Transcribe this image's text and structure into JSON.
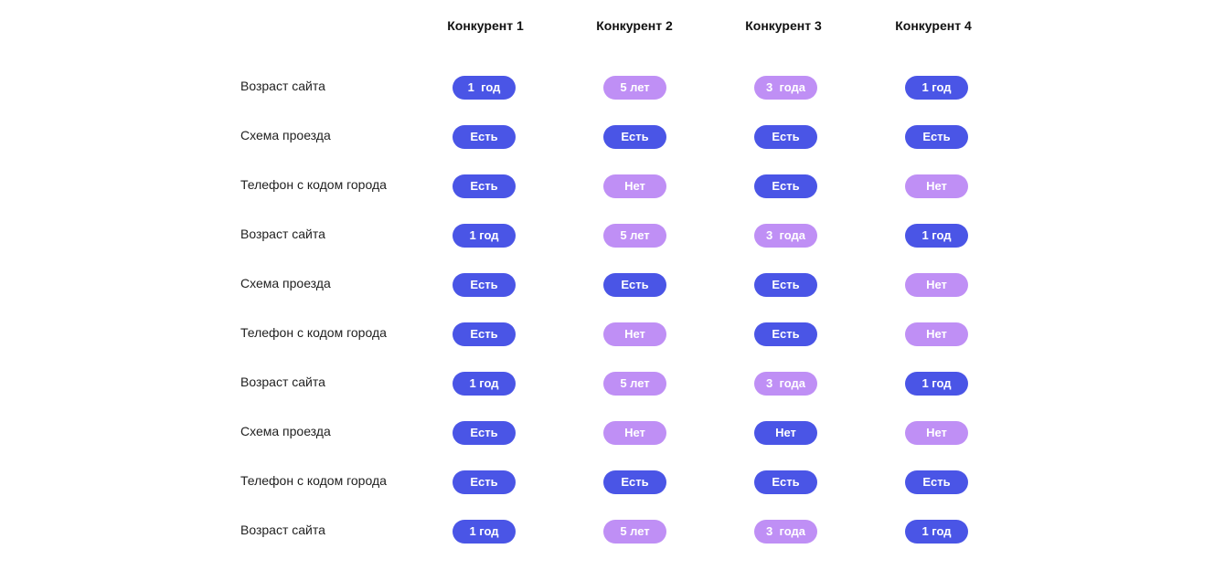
{
  "columns": [
    "Конкурент 1",
    "Конкурент 2",
    "Конкурент 3",
    "Конкурент 4"
  ],
  "colors": {
    "dark_pill": "#4a55e6",
    "light_pill": "#bf8ff5"
  },
  "rows": [
    {
      "label": "Возраст сайта",
      "cells": [
        {
          "text": "1  год",
          "tone": "dark"
        },
        {
          "text": "5 лет",
          "tone": "light"
        },
        {
          "text": "3  года",
          "tone": "light"
        },
        {
          "text": "1 год",
          "tone": "dark"
        }
      ]
    },
    {
      "label": "Схема проезда",
      "cells": [
        {
          "text": "Есть",
          "tone": "dark"
        },
        {
          "text": "Есть",
          "tone": "dark"
        },
        {
          "text": "Есть",
          "tone": "dark"
        },
        {
          "text": "Есть",
          "tone": "dark"
        }
      ]
    },
    {
      "label": "Телефон с кодом города",
      "cells": [
        {
          "text": "Есть",
          "tone": "dark"
        },
        {
          "text": "Нет",
          "tone": "light"
        },
        {
          "text": "Есть",
          "tone": "dark"
        },
        {
          "text": "Нет",
          "tone": "light"
        }
      ]
    },
    {
      "label": "Возраст сайта",
      "cells": [
        {
          "text": "1 год",
          "tone": "dark"
        },
        {
          "text": "5 лет",
          "tone": "light"
        },
        {
          "text": "3  года",
          "tone": "light"
        },
        {
          "text": "1 год",
          "tone": "dark"
        }
      ]
    },
    {
      "label": "Схема проезда",
      "cells": [
        {
          "text": "Есть",
          "tone": "dark"
        },
        {
          "text": "Есть",
          "tone": "dark"
        },
        {
          "text": "Есть",
          "tone": "dark"
        },
        {
          "text": "Нет",
          "tone": "light"
        }
      ]
    },
    {
      "label": "Телефон с кодом города",
      "cells": [
        {
          "text": "Есть",
          "tone": "dark"
        },
        {
          "text": "Нет",
          "tone": "light"
        },
        {
          "text": "Есть",
          "tone": "dark"
        },
        {
          "text": "Нет",
          "tone": "light"
        }
      ]
    },
    {
      "label": "Возраст сайта",
      "cells": [
        {
          "text": "1 год",
          "tone": "dark"
        },
        {
          "text": "5 лет",
          "tone": "light"
        },
        {
          "text": "3  года",
          "tone": "light"
        },
        {
          "text": "1 год",
          "tone": "dark"
        }
      ]
    },
    {
      "label": "Схема проезда",
      "cells": [
        {
          "text": "Есть",
          "tone": "dark"
        },
        {
          "text": "Нет",
          "tone": "light"
        },
        {
          "text": "Нет",
          "tone": "dark"
        },
        {
          "text": "Нет",
          "tone": "light"
        }
      ]
    },
    {
      "label": "Телефон с кодом города",
      "cells": [
        {
          "text": "Есть",
          "tone": "dark"
        },
        {
          "text": "Есть",
          "tone": "dark"
        },
        {
          "text": "Есть",
          "tone": "dark"
        },
        {
          "text": "Есть",
          "tone": "dark"
        }
      ]
    },
    {
      "label": "Возраст сайта",
      "cells": [
        {
          "text": "1 год",
          "tone": "dark"
        },
        {
          "text": "5 лет",
          "tone": "light"
        },
        {
          "text": "3  года",
          "tone": "light"
        },
        {
          "text": "1 год",
          "tone": "dark"
        }
      ]
    }
  ]
}
